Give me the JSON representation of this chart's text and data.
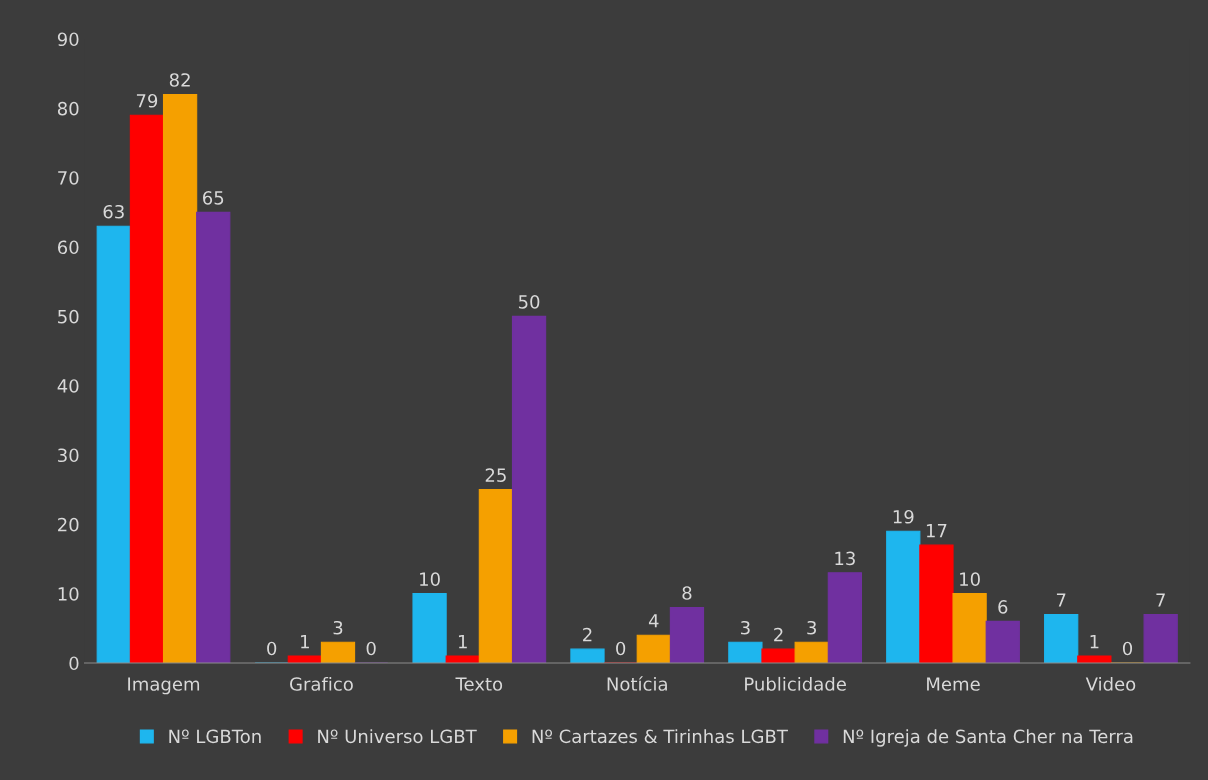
{
  "chart_data": {
    "type": "bar",
    "categories": [
      "Imagem",
      "Grafico",
      "Texto",
      "Notícia",
      "Publicidade",
      "Meme",
      "Video"
    ],
    "series": [
      {
        "name": "Nº LGBTon",
        "color": "#1eb6ee",
        "values": [
          63,
          0,
          10,
          2,
          3,
          19,
          7
        ]
      },
      {
        "name": "Nº Universo LGBT",
        "color": "#ff0000",
        "values": [
          79,
          1,
          1,
          0,
          2,
          17,
          1
        ]
      },
      {
        "name": "Nº Cartazes & Tirinhas LGBT",
        "color": "#f5a000",
        "values": [
          82,
          3,
          25,
          4,
          3,
          10,
          0
        ]
      },
      {
        "name": "Nº Igreja de Santa Cher na Terra",
        "color": "#7030a0",
        "values": [
          65,
          0,
          50,
          8,
          13,
          6,
          7
        ]
      }
    ],
    "ylim": [
      0,
      90
    ],
    "yticks": [
      0,
      10,
      20,
      30,
      40,
      50,
      60,
      70,
      80,
      90
    ],
    "data_labels": true,
    "grid": false,
    "legend": "bottom"
  }
}
